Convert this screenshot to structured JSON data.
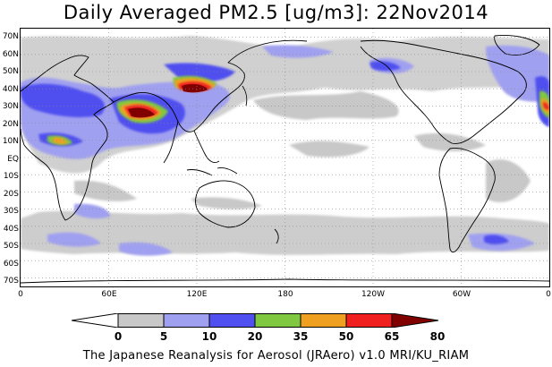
{
  "title": "Daily Averaged PM2.5 [ug/m3]: 22Nov2014",
  "footer": "The Japanese Reanalysis for Aerosol (JRAero) v1.0 MRI/KU_RIAM",
  "map": {
    "lat_labels": [
      "70N",
      "60N",
      "50N",
      "40N",
      "30N",
      "20N",
      "10N",
      "EQ",
      "10S",
      "20S",
      "30S",
      "40S",
      "50S",
      "60S",
      "70S"
    ],
    "lon_labels": [
      "0",
      "60E",
      "120E",
      "180",
      "120W",
      "60W",
      "0"
    ],
    "lat_range": [
      -75,
      75
    ],
    "lon_range": [
      0,
      360
    ],
    "grid": "dotted",
    "projection": "cylindrical-equidistant"
  },
  "colorbar": {
    "levels": [
      "0",
      "5",
      "10",
      "20",
      "35",
      "50",
      "65",
      "80"
    ],
    "colors": [
      "#ffffff",
      "#c8c8c8",
      "#a0a0f0",
      "#5050f0",
      "#80c840",
      "#f0a020",
      "#f02020",
      "#800000"
    ],
    "extend": "both"
  },
  "colors": {
    "coast": "#000000",
    "grid": "#888888"
  }
}
